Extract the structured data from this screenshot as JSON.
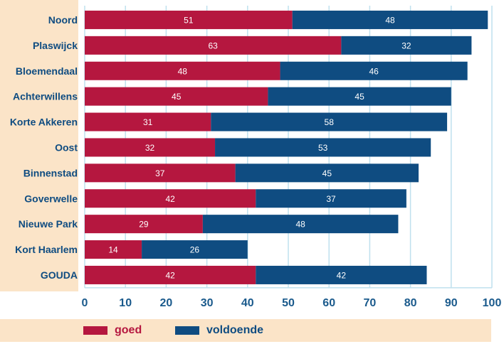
{
  "chart_data": {
    "type": "bar",
    "orientation": "horizontal",
    "stacked": true,
    "categories": [
      "Noord",
      "Plaswijck",
      "Bloemendaal",
      "Achterwillens",
      "Korte Akkeren",
      "Oost",
      "Binnenstad",
      "Goverwelle",
      "Nieuwe Park",
      "Kort Haarlem",
      "GOUDA"
    ],
    "series": [
      {
        "name": "goed",
        "color": "#b5173f",
        "values": [
          51,
          63,
          48,
          45,
          31,
          32,
          37,
          42,
          29,
          14,
          42
        ]
      },
      {
        "name": "voldoende",
        "color": "#0f4c81",
        "values": [
          48,
          32,
          46,
          45,
          58,
          53,
          45,
          37,
          48,
          26,
          42
        ]
      }
    ],
    "xticks": [
      "0",
      "10",
      "20",
      "30",
      "40",
      "50",
      "60",
      "70",
      "80",
      "90",
      "100"
    ],
    "xlim": [
      0,
      100
    ],
    "grid": true,
    "legend_position": "bottom",
    "colors": {
      "category_axis_bg": "#fbe4c8",
      "grid": "#bfe0ee",
      "tick_label": "#1a5a8c",
      "category_label": "#0f4c81",
      "data_label": "#ffffff"
    }
  }
}
